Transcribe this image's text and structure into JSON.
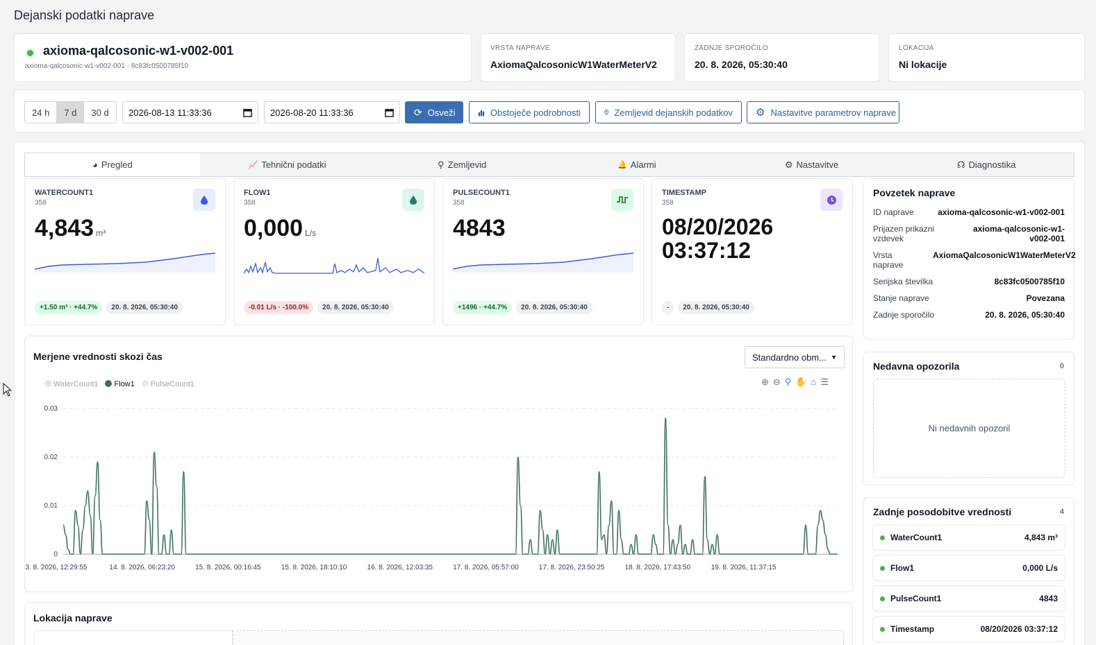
{
  "page_title": "Dejanski podatki naprave",
  "device": {
    "name": "axioma-qalcosonic-w1-v002-001",
    "meta": "axioma-qalcosonic-w1-v002-001 · 8c83fc0500785f10"
  },
  "info_cards": [
    {
      "label": "VRSTA NAPRAVE",
      "value": "AxiomaQalcosonicW1WaterMeterV2"
    },
    {
      "label": "ZADNJE SPOROČILO",
      "value": "20. 8. 2026, 05:30:40"
    },
    {
      "label": "LOKACIJA",
      "value": "Ni lokacije"
    }
  ],
  "toolbar": {
    "ranges": [
      "24 h",
      "7 d",
      "30 d"
    ],
    "active_range": "7 d",
    "date_from": "2026-08-13 11:33:36",
    "date_to": "2026-08-20 11:33:36",
    "refresh": "Osveži",
    "details": "Obstoječe podrobnosti",
    "map": "Zemljevid dejanskih podatkov",
    "settings": "Nastavitve parametrov naprave"
  },
  "tabs": [
    {
      "label": "Pregled",
      "icon": "palette-icon"
    },
    {
      "label": "Tehnični podatki",
      "icon": "line-chart-icon"
    },
    {
      "label": "Zemljevid",
      "icon": "map-pin-icon"
    },
    {
      "label": "Alarmi",
      "icon": "bell-icon"
    },
    {
      "label": "Nastavitve",
      "icon": "gear-icon"
    },
    {
      "label": "Diagnostika",
      "icon": "stethoscope-icon"
    }
  ],
  "metrics": [
    {
      "label": "WATERCOUNT1",
      "sub": "358",
      "value": "4,843",
      "unit": "m³",
      "delta": "+1.50 m³ · +44.7%",
      "time": "20. 8. 2026, 05:30:40",
      "icon": "droplet-icon",
      "icon_color": "#3b5bdb",
      "icon_bg": "#e7ecff"
    },
    {
      "label": "FLOW1",
      "sub": "358",
      "value": "0,000",
      "unit": "L/s",
      "delta": "-0.01 L/s · -100.0%",
      "time": "20. 8. 2026, 05:30:40",
      "icon": "droplet-icon",
      "icon_color": "#2d7a6a",
      "icon_bg": "#dcf5ee"
    },
    {
      "label": "PULSECOUNT1",
      "sub": "358",
      "value": "4843",
      "unit": "",
      "delta": "+1496 · +44.7%",
      "time": "20. 8. 2026, 05:30:40",
      "icon": "pulse-icon",
      "icon_color": "#2f7d32",
      "icon_bg": "#dcfce7"
    },
    {
      "label": "TIMESTAMP",
      "sub": "358",
      "value_line1": "08/20/2026",
      "value_line2": "03:37:12",
      "delta": "-",
      "time": "20. 8. 2026, 05:30:40",
      "icon": "clock-icon",
      "icon_color": "#7c4ddb",
      "icon_bg": "#ede4ff"
    }
  ],
  "summary": {
    "title": "Povzetek naprave",
    "rows": [
      {
        "k": "ID naprave",
        "v": "axioma-qalcosonic-w1-v002-001"
      },
      {
        "k": "Prijazen prikazni vzdevek",
        "v": "axioma-qalcosonic-w1-v002-001"
      },
      {
        "k": "Vrsta naprave",
        "v": "AxiomaQalcosonicW1WaterMeterV2"
      },
      {
        "k": "Serijska številka",
        "v": "8c83fc0500785f10"
      },
      {
        "k": "Stanje naprave",
        "v": "Povezana"
      },
      {
        "k": "Zadnje sporočilo",
        "v": "20. 8. 2026, 05:30:40"
      }
    ]
  },
  "alerts": {
    "title": "Nedavna opozorila",
    "count": "0",
    "empty": "Ni nedavnih opozoril"
  },
  "last_updates": {
    "title": "Zadnje posodobitve vrednosti",
    "count": "4",
    "rows": [
      {
        "k": "WaterCount1",
        "v": "4,843 m³"
      },
      {
        "k": "Flow1",
        "v": "0,000 L/s"
      },
      {
        "k": "PulseCount1",
        "v": "4843"
      },
      {
        "k": "Timestamp",
        "v": "08/20/2026 03:37:12"
      }
    ]
  },
  "chart_section": {
    "title": "Merjene vrednosti skozi čas",
    "select_value": "Standardno obm...",
    "location_title": "Lokacija naprave"
  },
  "chart_data": {
    "type": "line",
    "legend": [
      {
        "name": "WaterCount1",
        "color": "#dbe4f5",
        "active": false
      },
      {
        "name": "Flow1",
        "color": "#3f6e62",
        "active": true
      },
      {
        "name": "PulseCount1",
        "color": "#e8efd9",
        "active": false
      }
    ],
    "x_labels": [
      "3. 8. 2026, 12:29:55",
      "14. 8. 2026, 06:23:20",
      "15. 8. 2026, 00:16:45",
      "15. 8. 2026, 18:10:10",
      "16. 8. 2026, 12:03:35",
      "17. 8. 2026, 05:57:00",
      "17. 8. 2026, 23:50:25",
      "18. 8. 2026, 17:43:50",
      "19. 8. 2026, 11:37:15"
    ],
    "y_ticks": [
      "0.03",
      "0.02",
      "0.01",
      "0"
    ],
    "ylim": [
      0,
      0.03
    ],
    "series": [
      {
        "name": "Flow1",
        "values": [
          0.006,
          0.004,
          0.001,
          0.0,
          0.0,
          0.009,
          0.006,
          0.0,
          0.005,
          0.01,
          0.013,
          0.008,
          0.0,
          0.012,
          0.019,
          0.007,
          0.0,
          0.0,
          0.0,
          0.0,
          0.0,
          0.0,
          0.0,
          0.0,
          0.0,
          0.0,
          0.0,
          0.0,
          0.0,
          0.0,
          0.0,
          0.0,
          0.0,
          0.0,
          0.011,
          0.007,
          0.0,
          0.021,
          0.014,
          0.0,
          0.0,
          0.004,
          0.0,
          0.0,
          0.005,
          0.0,
          0.0,
          0.0,
          0.0,
          0.017,
          0.0,
          0.0,
          0.0,
          0.0,
          0.0,
          0.0,
          0.0,
          0.0,
          0.0,
          0.0,
          0.0,
          0.0,
          0.0,
          0.0,
          0.0,
          0.0,
          0.0,
          0.0,
          0.0,
          0.0,
          0.0,
          0.0,
          0.0,
          0.0,
          0.0,
          0.0,
          0.0,
          0.0,
          0.0,
          0.0,
          0.0,
          0.0,
          0.0,
          0.0,
          0.0,
          0.0,
          0.0,
          0.0,
          0.0,
          0.0,
          0.0,
          0.0,
          0.0,
          0.0,
          0.0,
          0.0,
          0.0,
          0.0,
          0.0,
          0.0,
          0.0,
          0.0,
          0.0,
          0.0,
          0.0,
          0.0,
          0.0,
          0.0,
          0.0,
          0.0,
          0.0,
          0.0,
          0.0,
          0.0,
          0.0,
          0.0,
          0.0,
          0.0,
          0.0,
          0.0,
          0.0,
          0.0,
          0.0,
          0.0,
          0.0,
          0.0,
          0.0,
          0.0,
          0.0,
          0.0,
          0.0,
          0.0,
          0.0,
          0.0,
          0.0,
          0.0,
          0.0,
          0.0,
          0.0,
          0.0,
          0.0,
          0.0,
          0.0,
          0.0,
          0.0,
          0.0,
          0.0,
          0.0,
          0.0,
          0.0,
          0.0,
          0.0,
          0.0,
          0.0,
          0.0,
          0.0,
          0.0,
          0.0,
          0.0,
          0.0,
          0.0,
          0.0,
          0.0,
          0.0,
          0.0,
          0.0,
          0.0,
          0.0,
          0.0,
          0.0,
          0.0,
          0.0,
          0.0,
          0.0,
          0.0,
          0.0,
          0.0,
          0.0,
          0.0,
          0.0,
          0.0,
          0.0,
          0.0,
          0.0,
          0.0,
          0.02,
          0.01,
          0.0,
          0.0,
          0.0,
          0.003,
          0.0,
          0.0,
          0.0,
          0.009,
          0.005,
          0.0,
          0.004,
          0.0,
          0.003,
          0.0,
          0.005,
          0.0,
          0.0,
          0.0,
          0.0,
          0.0,
          0.0,
          0.0,
          0.0,
          0.0,
          0.0,
          0.0,
          0.0,
          0.0,
          0.0,
          0.0,
          0.0,
          0.017,
          0.003,
          0.004,
          0.0,
          0.006,
          0.011,
          0.0,
          0.0,
          0.009,
          0.003,
          0.0,
          0.0,
          0.0,
          0.002,
          0.0,
          0.004,
          0.0,
          0.0,
          0.0,
          0.0,
          0.0,
          0.0,
          0.004,
          0.002,
          0.0,
          0.0,
          0.0,
          0.028,
          0.006,
          0.0,
          0.003,
          0.0,
          0.002,
          0.006,
          0.0,
          0.002,
          0.0,
          0.0,
          0.003,
          0.0,
          0.0,
          0.0,
          0.0,
          0.016,
          0.003,
          0.0,
          0.002,
          0.0,
          0.004,
          0.0,
          0.0,
          0.0,
          0.0,
          0.0,
          0.0,
          0.0,
          0.0,
          0.0,
          0.0,
          0.0,
          0.0,
          0.0,
          0.0,
          0.0,
          0.0,
          0.0,
          0.0,
          0.0,
          0.0,
          0.0,
          0.0,
          0.0,
          0.0,
          0.0,
          0.0,
          0.0,
          0.0,
          0.0,
          0.0,
          0.0,
          0.0,
          0.0,
          0.0,
          0.0,
          0.006,
          0.0,
          0.0,
          0.0,
          0.0,
          0.006,
          0.009,
          0.007,
          0.004,
          0.001,
          0.0,
          0.0,
          0.0,
          0.0
        ]
      }
    ]
  }
}
